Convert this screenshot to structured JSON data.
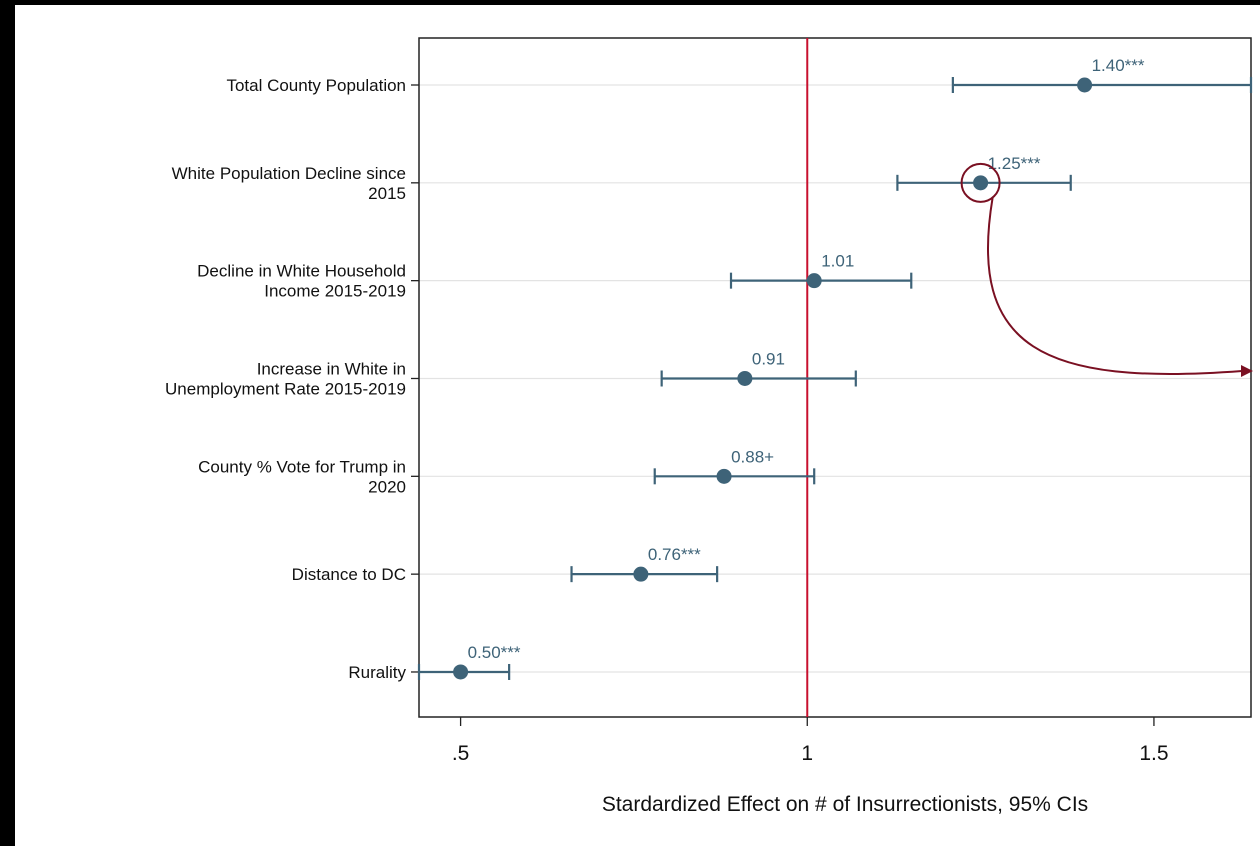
{
  "chart_data": {
    "type": "scatter",
    "subtype": "coefficient-plot",
    "xlabel": "Stardardized Effect on # of Insurrectionists, 95% CIs",
    "xlim": [
      0.44,
      1.64
    ],
    "xticks": [
      0.5,
      1,
      1.5
    ],
    "xtick_labels": [
      ".5",
      "1",
      "1.5"
    ],
    "reference_line": 1,
    "grid": "horizontal",
    "categories": [
      "Total County Population",
      "White Population Decline since 2015",
      "Decline in White Household Income 2015-2019",
      "Increase in White in Unemployment Rate 2015-2019",
      "County % Vote for Trump in 2020",
      "Distance to DC",
      "Rurality"
    ],
    "category_lines": [
      [
        "Total County Population"
      ],
      [
        "White Population Decline since",
        "2015"
      ],
      [
        "Decline in White Household",
        "Income 2015-2019"
      ],
      [
        "Increase in White in",
        "Unemployment Rate 2015-2019"
      ],
      [
        "County % Vote for Trump in",
        "2020"
      ],
      [
        "Distance to DC"
      ],
      [
        "Rurality"
      ]
    ],
    "estimates": [
      1.4,
      1.25,
      1.01,
      0.91,
      0.88,
      0.76,
      0.5
    ],
    "ci_low": [
      1.21,
      1.13,
      0.89,
      0.79,
      0.78,
      0.66,
      0.44
    ],
    "ci_high": [
      1.64,
      1.38,
      1.15,
      1.07,
      1.01,
      0.87,
      0.57
    ],
    "data_labels": [
      "1.40***",
      "1.25***",
      "1.01",
      "0.91",
      "0.88+",
      "0.76***",
      "0.50***"
    ],
    "highlighted_index": 1,
    "colors": {
      "marker": "#3e6378",
      "reference": "#c8102e",
      "annotation": "#7a1022",
      "grid": "#e3e3e3"
    }
  }
}
